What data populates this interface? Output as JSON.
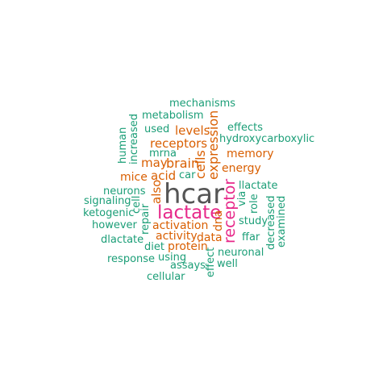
{
  "palette": {
    "top": "#555555",
    "primary": "#e7298a",
    "secondary": "#d95f02",
    "tertiary": "#1b9e77"
  },
  "words": [
    {
      "text": "hcar",
      "color": "top"
    },
    {
      "text": "lactate",
      "color": "primary"
    },
    {
      "text": "receptor",
      "color": "primary"
    },
    {
      "text": "expression",
      "color": "secondary"
    },
    {
      "text": "cells",
      "color": "secondary"
    },
    {
      "text": "brain",
      "color": "secondary"
    },
    {
      "text": "levels",
      "color": "secondary"
    },
    {
      "text": "receptors",
      "color": "secondary"
    },
    {
      "text": "may",
      "color": "secondary"
    },
    {
      "text": "acid",
      "color": "secondary"
    },
    {
      "text": "also",
      "color": "secondary"
    },
    {
      "text": "mice",
      "color": "secondary"
    },
    {
      "text": "memory",
      "color": "secondary"
    },
    {
      "text": "energy",
      "color": "secondary"
    },
    {
      "text": "activation",
      "color": "secondary"
    },
    {
      "text": "activity",
      "color": "secondary"
    },
    {
      "text": "data",
      "color": "secondary"
    },
    {
      "text": "protein",
      "color": "secondary"
    },
    {
      "text": "dna",
      "color": "secondary"
    },
    {
      "text": "mechanisms",
      "color": "tertiary"
    },
    {
      "text": "metabolism",
      "color": "tertiary"
    },
    {
      "text": "human",
      "color": "tertiary"
    },
    {
      "text": "increased",
      "color": "tertiary"
    },
    {
      "text": "used",
      "color": "tertiary"
    },
    {
      "text": "effects",
      "color": "tertiary"
    },
    {
      "text": "hydroxycarboxylic",
      "color": "tertiary"
    },
    {
      "text": "mrna",
      "color": "tertiary"
    },
    {
      "text": "car",
      "color": "tertiary"
    },
    {
      "text": "llactate",
      "color": "tertiary"
    },
    {
      "text": "neurons",
      "color": "tertiary"
    },
    {
      "text": "signaling",
      "color": "tertiary"
    },
    {
      "text": "cell",
      "color": "tertiary"
    },
    {
      "text": "ketogenic",
      "color": "tertiary"
    },
    {
      "text": "via",
      "color": "tertiary"
    },
    {
      "text": "role",
      "color": "tertiary"
    },
    {
      "text": "study",
      "color": "tertiary"
    },
    {
      "text": "however",
      "color": "tertiary"
    },
    {
      "text": "repair",
      "color": "tertiary"
    },
    {
      "text": "dlactate",
      "color": "tertiary"
    },
    {
      "text": "ffar",
      "color": "tertiary"
    },
    {
      "text": "decreased",
      "color": "tertiary"
    },
    {
      "text": "examined",
      "color": "tertiary"
    },
    {
      "text": "diet",
      "color": "tertiary"
    },
    {
      "text": "neuronal",
      "color": "tertiary"
    },
    {
      "text": "response",
      "color": "tertiary"
    },
    {
      "text": "using",
      "color": "tertiary"
    },
    {
      "text": "assays",
      "color": "tertiary"
    },
    {
      "text": "effect",
      "color": "tertiary"
    },
    {
      "text": "well",
      "color": "tertiary"
    },
    {
      "text": "cellular",
      "color": "tertiary"
    }
  ]
}
